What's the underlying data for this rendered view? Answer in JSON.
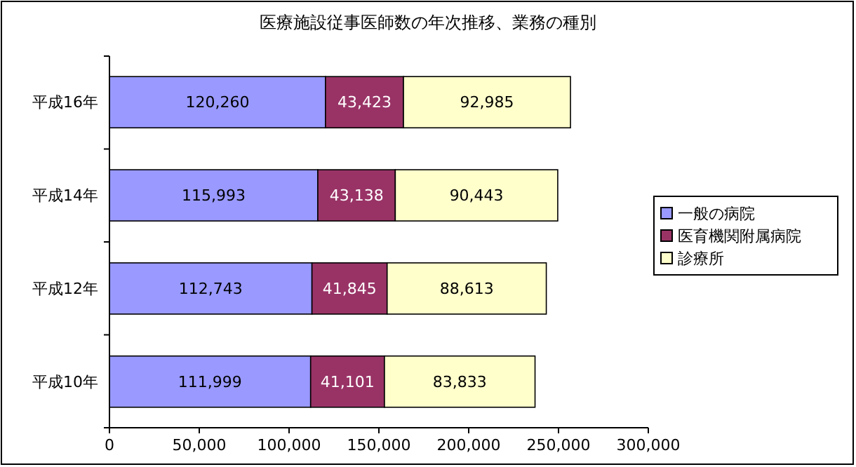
{
  "chart_data": {
    "type": "bar",
    "title": "医療施設従事医師数の年次推移、業務の種別",
    "orientation": "horizontal",
    "stacked": true,
    "categories": [
      "平成16年",
      "平成14年",
      "平成12年",
      "平成10年"
    ],
    "series": [
      {
        "name": "一般の病院",
        "color": "#9999ff",
        "values": [
          120260,
          115993,
          112743,
          111999
        ],
        "value_labels": [
          "120,260",
          "115,993",
          "112,743",
          "111,999"
        ]
      },
      {
        "name": "医育機関附属病院",
        "color": "#993366",
        "values": [
          43423,
          43138,
          41845,
          41101
        ],
        "value_labels": [
          "43,423",
          "43,138",
          "41,845",
          "41,101"
        ]
      },
      {
        "name": "診療所",
        "color": "#ffffcc",
        "values": [
          92985,
          90443,
          88613,
          83833
        ],
        "value_labels": [
          "92,985",
          "90,443",
          "88,613",
          "83,833"
        ]
      }
    ],
    "xlim": [
      0,
      300000
    ],
    "xticks": [
      0,
      {
        "value": 50000,
        "label": "50,000"
      },
      {
        "value": 100000,
        "label": "100,000"
      },
      {
        "value": 150000,
        "label": "150,000"
      },
      {
        "value": 200000,
        "label": "200,000"
      },
      {
        "value": 250000,
        "label": "250,000"
      },
      {
        "value": 300000,
        "label": "300,000"
      }
    ],
    "legend": "right",
    "grid": false
  }
}
